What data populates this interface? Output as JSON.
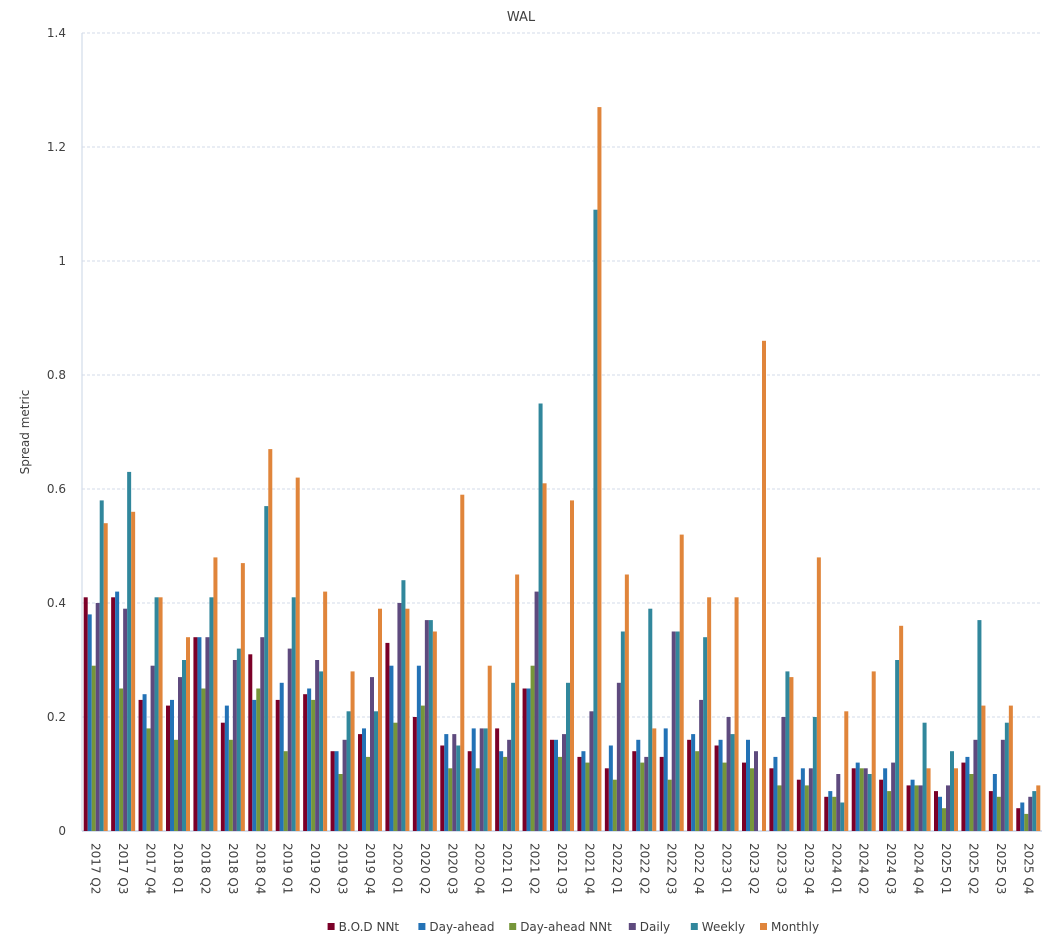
{
  "chart_data": {
    "type": "bar",
    "title": "WAL",
    "xlabel": "",
    "ylabel": "Spread metric",
    "ylim": [
      0,
      1.4
    ],
    "yticks": [
      "0",
      "0.2",
      "0.4",
      "0.6",
      "0.8",
      "1",
      "1.2",
      "1.4"
    ],
    "grid": true,
    "legend_position": "bottom",
    "categories": [
      "2017 Q2",
      "2017 Q3",
      "2017 Q4",
      "2018 Q1",
      "2018 Q2",
      "2018 Q3",
      "2018 Q4",
      "2019 Q1",
      "2019 Q2",
      "2019 Q3",
      "2019 Q4",
      "2020 Q1",
      "2020 Q2",
      "2020 Q3",
      "2020 Q4",
      "2021 Q1",
      "2021 Q2",
      "2021 Q3",
      "2021 Q4",
      "2022 Q1",
      "2022 Q2",
      "2022 Q3",
      "2022 Q4",
      "2023 Q1",
      "2023 Q2",
      "2023 Q3",
      "2023 Q4",
      "2024 Q1",
      "2024 Q2",
      "2024 Q3",
      "2024 Q4",
      "2025 Q1",
      "2025 Q2",
      "2025 Q3",
      "2025 Q4"
    ],
    "series": [
      {
        "name": "B.O.D NNt",
        "color": "#7B0028",
        "values": [
          0.41,
          0.41,
          0.23,
          0.22,
          0.34,
          0.19,
          0.31,
          0.23,
          0.24,
          0.14,
          0.17,
          0.33,
          0.2,
          0.15,
          0.14,
          0.18,
          0.25,
          0.16,
          0.13,
          0.11,
          0.14,
          0.13,
          0.16,
          0.15,
          0.12,
          0.11,
          0.09,
          0.06,
          0.11,
          0.09,
          0.08,
          0.07,
          0.12,
          0.07,
          0.04
        ]
      },
      {
        "name": "Day-ahead",
        "color": "#2372B6",
        "values": [
          0.38,
          0.42,
          0.24,
          0.23,
          0.34,
          0.22,
          0.23,
          0.26,
          0.25,
          0.14,
          0.18,
          0.29,
          0.29,
          0.17,
          0.18,
          0.14,
          0.25,
          0.16,
          0.14,
          0.15,
          0.16,
          0.18,
          0.17,
          0.16,
          0.16,
          0.13,
          0.11,
          0.07,
          0.12,
          0.11,
          0.09,
          0.06,
          0.13,
          0.1,
          0.05
        ]
      },
      {
        "name": "Day-ahead NNt",
        "color": "#76963A",
        "values": [
          0.29,
          0.25,
          0.18,
          0.16,
          0.25,
          0.16,
          0.25,
          0.14,
          0.23,
          0.1,
          0.13,
          0.19,
          0.22,
          0.11,
          0.11,
          0.13,
          0.29,
          0.13,
          0.12,
          0.09,
          0.12,
          0.09,
          0.14,
          0.12,
          0.11,
          0.08,
          0.08,
          0.06,
          0.11,
          0.07,
          0.08,
          0.04,
          0.1,
          0.06,
          0.03
        ]
      },
      {
        "name": "Daily",
        "color": "#5E4A7E",
        "values": [
          0.4,
          0.39,
          0.29,
          0.27,
          0.34,
          0.3,
          0.34,
          0.32,
          0.3,
          0.16,
          0.27,
          0.4,
          0.37,
          0.17,
          0.18,
          0.16,
          0.42,
          0.17,
          0.21,
          0.26,
          0.13,
          0.35,
          0.23,
          0.2,
          0.14,
          0.2,
          0.11,
          0.1,
          0.11,
          0.12,
          0.08,
          0.08,
          0.16,
          0.16,
          0.06
        ]
      },
      {
        "name": "Weekly",
        "color": "#31879C",
        "values": [
          0.58,
          0.63,
          0.41,
          0.3,
          0.41,
          0.32,
          0.57,
          0.41,
          0.28,
          0.21,
          0.21,
          0.44,
          0.37,
          0.15,
          0.18,
          0.26,
          0.75,
          0.26,
          1.09,
          0.35,
          0.39,
          0.35,
          0.34,
          0.17,
          0,
          0.28,
          0.2,
          0.05,
          0.1,
          0.3,
          0.19,
          0.14,
          0.37,
          0.19,
          0.07
        ]
      },
      {
        "name": "Monthly",
        "color": "#E0853B",
        "values": [
          0.54,
          0.56,
          0.41,
          0.34,
          0.48,
          0.47,
          0.67,
          0.62,
          0.42,
          0.28,
          0.39,
          0.39,
          0.35,
          0.59,
          0.29,
          0.45,
          0.61,
          0.58,
          1.27,
          0.45,
          0.18,
          0.52,
          0.41,
          0.41,
          0.86,
          0.27,
          0.48,
          0.21,
          0.28,
          0.36,
          0.11,
          0.11,
          0.22,
          0.22,
          0.08
        ]
      }
    ]
  }
}
